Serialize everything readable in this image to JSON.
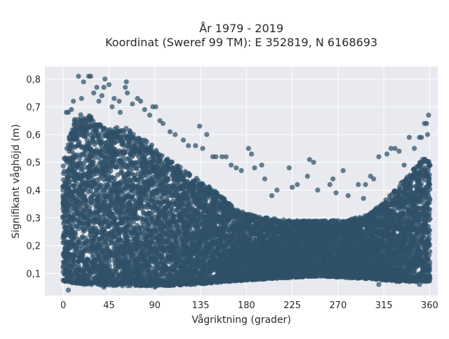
{
  "chart_data": {
    "type": "scatter",
    "title_line1": "År 1979 - 2019",
    "title_line2": "Koordinat (Sweref 99 TM): E 352819, N 6168693",
    "xlabel": "Vågriktning (grader)",
    "ylabel": "Signifikant våghöjd (m)",
    "xlim": [
      -18,
      368
    ],
    "ylim": [
      0.02,
      0.845
    ],
    "x_ticks": [
      0,
      45,
      90,
      135,
      180,
      225,
      270,
      315,
      360
    ],
    "x_tick_labels": [
      "0",
      "45",
      "90",
      "135",
      "180",
      "225",
      "270",
      "315",
      "360"
    ],
    "y_ticks": [
      0.1,
      0.2,
      0.3,
      0.4,
      0.5,
      0.6,
      0.7,
      0.8
    ],
    "y_tick_labels": [
      "0,1",
      "0,2",
      "0,3",
      "0,4",
      "0,5",
      "0,6",
      "0,7",
      "0,8"
    ],
    "grid": true,
    "legend": "none",
    "marker_color": "#2f5168",
    "plot_background": "#e8eaf0",
    "upper_envelope": [
      [
        0,
        0.5
      ],
      [
        10,
        0.66
      ],
      [
        20,
        0.68
      ],
      [
        30,
        0.66
      ],
      [
        45,
        0.62
      ],
      [
        60,
        0.63
      ],
      [
        70,
        0.6
      ],
      [
        85,
        0.57
      ],
      [
        100,
        0.52
      ],
      [
        110,
        0.5
      ],
      [
        125,
        0.46
      ],
      [
        140,
        0.42
      ],
      [
        155,
        0.38
      ],
      [
        170,
        0.33
      ],
      [
        185,
        0.31
      ],
      [
        200,
        0.3
      ],
      [
        225,
        0.29
      ],
      [
        250,
        0.29
      ],
      [
        275,
        0.29
      ],
      [
        300,
        0.31
      ],
      [
        315,
        0.36
      ],
      [
        330,
        0.42
      ],
      [
        345,
        0.48
      ],
      [
        355,
        0.52
      ],
      [
        360,
        0.5
      ]
    ],
    "lower_envelope": [
      [
        0,
        0.07
      ],
      [
        20,
        0.06
      ],
      [
        50,
        0.055
      ],
      [
        100,
        0.055
      ],
      [
        130,
        0.06
      ],
      [
        160,
        0.07
      ],
      [
        200,
        0.08
      ],
      [
        250,
        0.09
      ],
      [
        300,
        0.08
      ],
      [
        330,
        0.07
      ],
      [
        360,
        0.07
      ]
    ],
    "outliers": [
      [
        15,
        0.81
      ],
      [
        25,
        0.81
      ],
      [
        27,
        0.81
      ],
      [
        20,
        0.79
      ],
      [
        30,
        0.75
      ],
      [
        33,
        0.77
      ],
      [
        41,
        0.8
      ],
      [
        40,
        0.77
      ],
      [
        45,
        0.78
      ],
      [
        62,
        0.79
      ],
      [
        61,
        0.77
      ],
      [
        63,
        0.75
      ],
      [
        50,
        0.73
      ],
      [
        55,
        0.72
      ],
      [
        3,
        0.68
      ],
      [
        5,
        0.68
      ],
      [
        8,
        0.69
      ],
      [
        10,
        0.72
      ],
      [
        18,
        0.73
      ],
      [
        35,
        0.72
      ],
      [
        38,
        0.74
      ],
      [
        48,
        0.7
      ],
      [
        56,
        0.68
      ],
      [
        68,
        0.71
      ],
      [
        73,
        0.73
      ],
      [
        76,
        0.72
      ],
      [
        80,
        0.69
      ],
      [
        88,
        0.7
      ],
      [
        91,
        0.7
      ],
      [
        85,
        0.67
      ],
      [
        95,
        0.65
      ],
      [
        98,
        0.64
      ],
      [
        105,
        0.61
      ],
      [
        110,
        0.6
      ],
      [
        118,
        0.58
      ],
      [
        123,
        0.56
      ],
      [
        130,
        0.56
      ],
      [
        134,
        0.63
      ],
      [
        141,
        0.6
      ],
      [
        137,
        0.55
      ],
      [
        147,
        0.52
      ],
      [
        150,
        0.52
      ],
      [
        156,
        0.52
      ],
      [
        160,
        0.52
      ],
      [
        165,
        0.49
      ],
      [
        170,
        0.48
      ],
      [
        175,
        0.47
      ],
      [
        182,
        0.55
      ],
      [
        185,
        0.53
      ],
      [
        188,
        0.48
      ],
      [
        195,
        0.49
      ],
      [
        198,
        0.44
      ],
      [
        205,
        0.38
      ],
      [
        210,
        0.4
      ],
      [
        222,
        0.48
      ],
      [
        225,
        0.41
      ],
      [
        230,
        0.42
      ],
      [
        240,
        0.45
      ],
      [
        242,
        0.51
      ],
      [
        246,
        0.5
      ],
      [
        250,
        0.4
      ],
      [
        262,
        0.42
      ],
      [
        265,
        0.44
      ],
      [
        268,
        0.39
      ],
      [
        275,
        0.47
      ],
      [
        280,
        0.38
      ],
      [
        290,
        0.42
      ],
      [
        295,
        0.37
      ],
      [
        297,
        0.42
      ],
      [
        302,
        0.45
      ],
      [
        305,
        0.44
      ],
      [
        310,
        0.52
      ],
      [
        318,
        0.53
      ],
      [
        322,
        0.55
      ],
      [
        326,
        0.55
      ],
      [
        330,
        0.54
      ],
      [
        335,
        0.49
      ],
      [
        340,
        0.59
      ],
      [
        345,
        0.55
      ],
      [
        350,
        0.59
      ],
      [
        352,
        0.59
      ],
      [
        355,
        0.64
      ],
      [
        357,
        0.64
      ],
      [
        359,
        0.67
      ],
      [
        358,
        0.6
      ],
      [
        5,
        0.04
      ],
      [
        40,
        0.05
      ],
      [
        90,
        0.05
      ],
      [
        310,
        0.06
      ],
      [
        350,
        0.06
      ]
    ]
  }
}
